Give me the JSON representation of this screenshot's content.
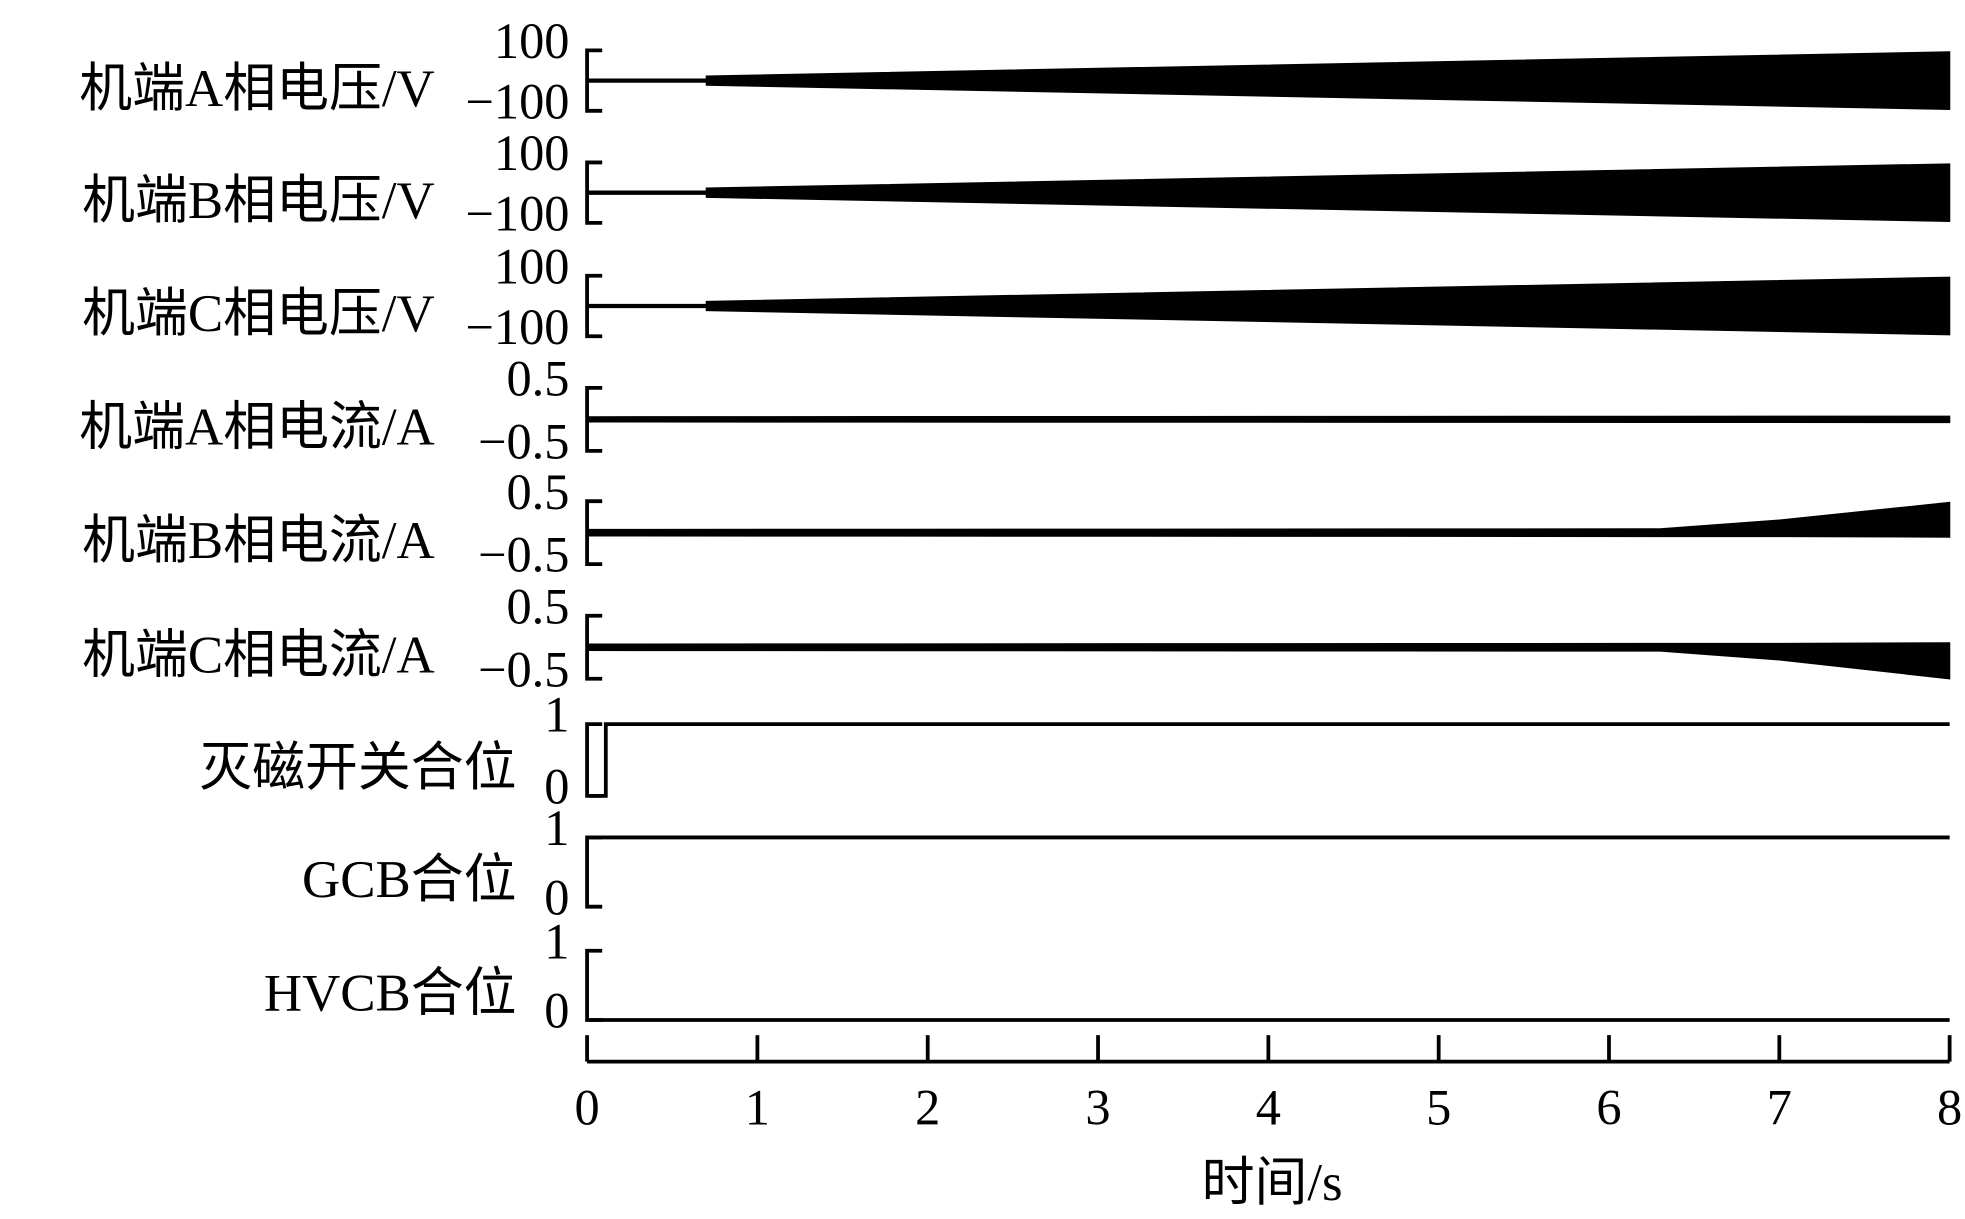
{
  "chart_data": {
    "type": "line",
    "xlabel": "时间/s",
    "xlim": [
      0,
      8
    ],
    "xticks": [
      "0",
      "1",
      "2",
      "3",
      "4",
      "5",
      "6",
      "7",
      "8"
    ],
    "grid": false,
    "color": "#000000",
    "panels": [
      {
        "label": "机端A相电压/V",
        "kind": "envelope",
        "ylim": [
          -100,
          100
        ],
        "ytick_top": "100",
        "ytick_bottom": "−100",
        "envelope": [
          [
            0,
            1,
            -1
          ],
          [
            0.7,
            1,
            -1
          ],
          [
            0.7,
            15,
            -15
          ],
          [
            8,
            95,
            -95
          ]
        ]
      },
      {
        "label": "机端B相电压/V",
        "kind": "envelope",
        "ylim": [
          -100,
          100
        ],
        "ytick_top": "100",
        "ytick_bottom": "−100",
        "envelope": [
          [
            0,
            1,
            -1
          ],
          [
            0.7,
            1,
            -1
          ],
          [
            0.7,
            15,
            -15
          ],
          [
            8,
            95,
            -95
          ]
        ]
      },
      {
        "label": "机端C相电压/V",
        "kind": "envelope",
        "ylim": [
          -100,
          100
        ],
        "ytick_top": "100",
        "ytick_bottom": "−100",
        "envelope": [
          [
            0,
            1,
            -1
          ],
          [
            0.7,
            1,
            -1
          ],
          [
            0.7,
            15,
            -15
          ],
          [
            8,
            95,
            -95
          ]
        ]
      },
      {
        "label": "机端A相电流/A",
        "kind": "envelope",
        "ylim": [
          -0.5,
          0.5
        ],
        "ytick_top": "0.5",
        "ytick_bottom": "−0.5",
        "envelope": [
          [
            0,
            0.04,
            -0.04
          ],
          [
            8,
            0.05,
            -0.05
          ]
        ]
      },
      {
        "label": "机端B相电流/A",
        "kind": "envelope",
        "ylim": [
          -0.5,
          0.5
        ],
        "ytick_top": "0.5",
        "ytick_bottom": "−0.5",
        "envelope": [
          [
            0,
            0.05,
            -0.05
          ],
          [
            6.3,
            0.06,
            -0.06
          ],
          [
            7,
            0.2,
            -0.06
          ],
          [
            8,
            0.48,
            -0.07
          ]
        ]
      },
      {
        "label": "机端C相电流/A",
        "kind": "envelope",
        "ylim": [
          -0.5,
          0.5
        ],
        "ytick_top": "0.5",
        "ytick_bottom": "−0.5",
        "envelope": [
          [
            0,
            0.05,
            -0.05
          ],
          [
            6.3,
            0.06,
            -0.06
          ],
          [
            7,
            0.06,
            -0.2
          ],
          [
            8,
            0.07,
            -0.5
          ]
        ]
      },
      {
        "label": "灭磁开关合位",
        "kind": "step",
        "ylim": [
          0,
          1
        ],
        "ytick_top": "1",
        "ytick_bottom": "0",
        "steps": [
          [
            0,
            0
          ],
          [
            0.11,
            1
          ],
          [
            8,
            1
          ]
        ]
      },
      {
        "label": "GCB合位",
        "kind": "step",
        "ylim": [
          0,
          1
        ],
        "ytick_top": "1",
        "ytick_bottom": "0",
        "steps": [
          [
            0,
            1
          ],
          [
            8,
            1
          ]
        ]
      },
      {
        "label": "HVCB合位",
        "kind": "step",
        "ylim": [
          0,
          1
        ],
        "ytick_top": "1",
        "ytick_bottom": "0",
        "steps": [
          [
            0,
            0
          ],
          [
            8,
            0
          ]
        ]
      }
    ]
  }
}
